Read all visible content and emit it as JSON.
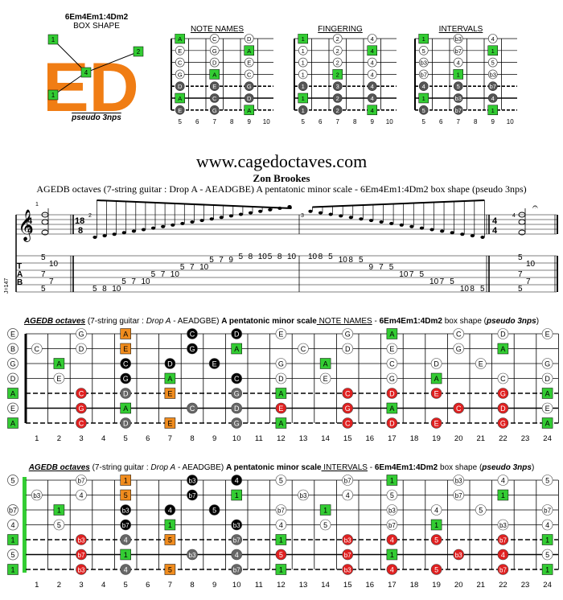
{
  "shape_panel": {
    "title": "6Em4Em1:4Dm2",
    "subtitle": "BOX SHAPE",
    "caption": "pseudo 3nps",
    "letters": "ED",
    "finger_labels": [
      "1",
      "2",
      "4",
      "1",
      "4",
      "2"
    ]
  },
  "mini_diagrams": [
    {
      "title": "NOTE NAMES",
      "rows": [
        [
          "A",
          "",
          "C",
          "",
          "D"
        ],
        [
          "E",
          "",
          "G",
          "",
          "A"
        ],
        [
          "C",
          "",
          "D",
          "",
          "E"
        ],
        [
          "G",
          "",
          "A",
          "",
          "C"
        ],
        [
          "D",
          "",
          "E",
          "",
          "G"
        ],
        [
          "A",
          "",
          "C",
          "",
          "D"
        ],
        [
          "E",
          "",
          "G",
          "",
          "A"
        ]
      ]
    },
    {
      "title": "FINGERING",
      "rows": [
        [
          "1",
          "",
          "2",
          "",
          "4"
        ],
        [
          "1",
          "",
          "2",
          "",
          "4"
        ],
        [
          "1",
          "",
          "2",
          "",
          "4"
        ],
        [
          "1",
          "",
          "2",
          "",
          "4"
        ],
        [
          "1",
          "",
          "3",
          "",
          "4"
        ],
        [
          "1",
          "",
          "2",
          "",
          "4"
        ],
        [
          "1",
          "",
          "2",
          "",
          "4"
        ]
      ]
    },
    {
      "title": "INTERVALS",
      "rows": [
        [
          "1",
          "",
          "b3",
          "",
          "4"
        ],
        [
          "5",
          "",
          "b7",
          "",
          "1"
        ],
        [
          "b3",
          "",
          "4",
          "",
          "5"
        ],
        [
          "b7",
          "",
          "1",
          "",
          "b3"
        ],
        [
          "4",
          "",
          "5",
          "",
          "b7"
        ],
        [
          "1",
          "",
          "b3",
          "",
          "4"
        ],
        [
          "5",
          "",
          "b7",
          "",
          "1"
        ]
      ]
    }
  ],
  "mini_fret_numbers": [
    "5",
    "6",
    "7",
    "8",
    "9",
    "10"
  ],
  "site_title": "www.cagedoctaves.com",
  "author": "Zon Brookes",
  "subtitle": "AGEDB octaves (7-string guitar : Drop A - AEADGBE) A pentatonic minor scale - 6Em4Em1:4Dm2 box shape (pseudo 3nps)",
  "score": {
    "time_signature_1": "4/4",
    "time_signature_2": "18/8",
    "measure_numbers": [
      "1",
      "2",
      "3",
      "4"
    ],
    "tempo_mark": "J=147",
    "tab_label": "TAB",
    "tab_measures": [
      {
        "frets": [
          [
            "5"
          ],
          [
            "10"
          ],
          [
            "7"
          ],
          [
            "7"
          ],
          [
            "5"
          ]
        ]
      },
      {
        "run": [
          "5",
          "8",
          "10",
          "5",
          "7",
          "10",
          "5",
          "7",
          "10",
          "5",
          "7",
          "10",
          "5",
          "7",
          "9",
          "5",
          "8",
          "10",
          "5",
          "8",
          "10"
        ]
      },
      {
        "run": [
          "10",
          "8",
          "5",
          "10",
          "8",
          "5",
          "9",
          "7",
          "5",
          "10",
          "7",
          "5",
          "10",
          "7",
          "5",
          "10",
          "8",
          "5"
        ]
      },
      {
        "frets": [
          [
            "5"
          ],
          [
            "10"
          ],
          [
            "7"
          ],
          [
            "7"
          ],
          [
            "5"
          ]
        ]
      }
    ]
  },
  "fretboard_notes": {
    "title_parts": [
      "AGEDB octaves",
      " (7-string guitar : ",
      "Drop A",
      " - AEADGBE) ",
      "A pentatonic minor scale",
      " NOTE NAMES",
      " - ",
      "6Em4Em1:4Dm2",
      " box shape (",
      "pseudo 3nps",
      ")"
    ],
    "open": [
      "E",
      "B",
      "G",
      "D",
      "A",
      "E",
      "A"
    ],
    "rows": [
      {
        "1": "",
        "3": "G",
        "5": "A",
        "8": "C",
        "10": "D",
        "12": "E",
        "15": "G",
        "17": "A",
        "20": "C",
        "22": "D",
        "24": "E"
      },
      {
        "1": "C",
        "3": "D",
        "5": "E",
        "8": "G",
        "10": "A",
        "13": "C",
        "15": "D",
        "17": "E",
        "20": "G",
        "22": "A"
      },
      {
        "2": "A",
        "5": "C",
        "7": "D",
        "9": "E",
        "12": "G",
        "14": "A",
        "17": "C",
        "19": "D",
        "21": "E",
        "24": "G"
      },
      {
        "2": "E",
        "5": "G",
        "7": "A",
        "10": "C",
        "12": "D",
        "14": "E",
        "17": "G",
        "19": "A",
        "22": "C",
        "24": "D"
      },
      {
        "3": "C",
        "5": "D",
        "7": "E",
        "10": "G",
        "12": "A",
        "15": "C",
        "17": "D",
        "19": "E",
        "22": "G",
        "24": "A"
      },
      {
        "3": "G",
        "5": "A",
        "8": "C",
        "10": "D",
        "12": "E",
        "15": "G",
        "17": "A",
        "20": "C",
        "22": "D",
        "24": "E"
      },
      {
        "3": "C",
        "5": "D",
        "7": "E",
        "10": "G",
        "12": "A",
        "15": "C",
        "17": "D",
        "19": "E",
        "22": "G",
        "24": "A"
      }
    ]
  },
  "fretboard_intervals": {
    "title_parts": [
      "AGEDB octaves",
      " (7-string guitar : ",
      "Drop A",
      " - AEADGBE) ",
      "A pentatonic minor scale",
      " INTERVALS",
      " - ",
      "6Em4Em1:4Dm2",
      " box shape (",
      "pseudo 3nps",
      ")"
    ],
    "open": [
      "5",
      "",
      "b7",
      "4",
      "1",
      "5",
      "1"
    ],
    "rows": [
      {
        "3": "b7",
        "5": "1",
        "8": "b3",
        "10": "4",
        "12": "5",
        "15": "b7",
        "17": "1",
        "20": "b3",
        "22": "4",
        "24": "5"
      },
      {
        "1": "b3",
        "3": "4",
        "5": "5",
        "8": "b7",
        "10": "1",
        "13": "b3",
        "15": "4",
        "17": "5",
        "20": "b7",
        "22": "1"
      },
      {
        "2": "1",
        "5": "b3",
        "7": "4",
        "9": "5",
        "12": "b7",
        "14": "1",
        "17": "b3",
        "19": "4",
        "21": "5",
        "24": "b7"
      },
      {
        "2": "5",
        "5": "b7",
        "7": "1",
        "10": "b3",
        "12": "4",
        "14": "5",
        "17": "b7",
        "19": "1",
        "22": "b3",
        "24": "4"
      },
      {
        "3": "b3",
        "5": "4",
        "7": "5",
        "10": "b7",
        "12": "1",
        "15": "b3",
        "17": "4",
        "19": "5",
        "22": "b7",
        "24": "1"
      },
      {
        "3": "b7",
        "5": "1",
        "8": "b3",
        "10": "4",
        "12": "5",
        "15": "b7",
        "17": "1",
        "20": "b3",
        "22": "4",
        "24": "5"
      },
      {
        "3": "b3",
        "5": "4",
        "7": "5",
        "10": "b7",
        "12": "1",
        "15": "b3",
        "17": "4",
        "19": "5",
        "22": "b7",
        "24": "1"
      }
    ]
  },
  "fret_numbers": [
    "1",
    "2",
    "3",
    "4",
    "5",
    "6",
    "7",
    "8",
    "9",
    "10",
    "11",
    "12",
    "13",
    "14",
    "15",
    "16",
    "17",
    "18",
    "19",
    "20",
    "21",
    "22",
    "23",
    "24"
  ],
  "colors": {
    "green": "#33cc33",
    "orange": "#f08c1e",
    "red": "#e02020",
    "black": "#000000",
    "grey": "#666666",
    "shape_orange": "#f07d14"
  }
}
